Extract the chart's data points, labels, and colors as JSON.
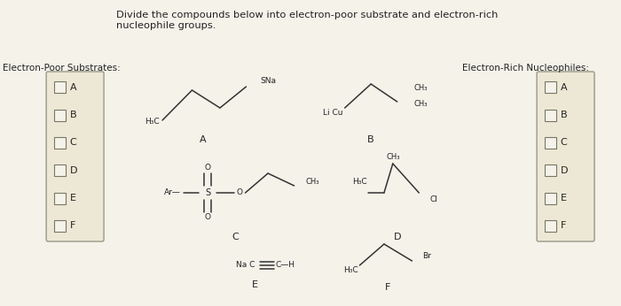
{
  "bg_color": "#f0ede4",
  "inner_bg": "#f5f2ea",
  "title_text": "Divide the compounds below into electron-poor substrate and electron-rich\nnucleophile groups.",
  "title_fontsize": 8.2,
  "left_label": "Electron-Poor Substrates:",
  "right_label": "Electron-Rich Nucleophiles:",
  "checkbox_labels": [
    "A",
    "B",
    "C",
    "D",
    "E",
    "F"
  ],
  "panel_bg": "#ede8d5",
  "panel_border": "#999988",
  "checkbox_bg": "#f5f2ea",
  "checkbox_border": "#777766"
}
